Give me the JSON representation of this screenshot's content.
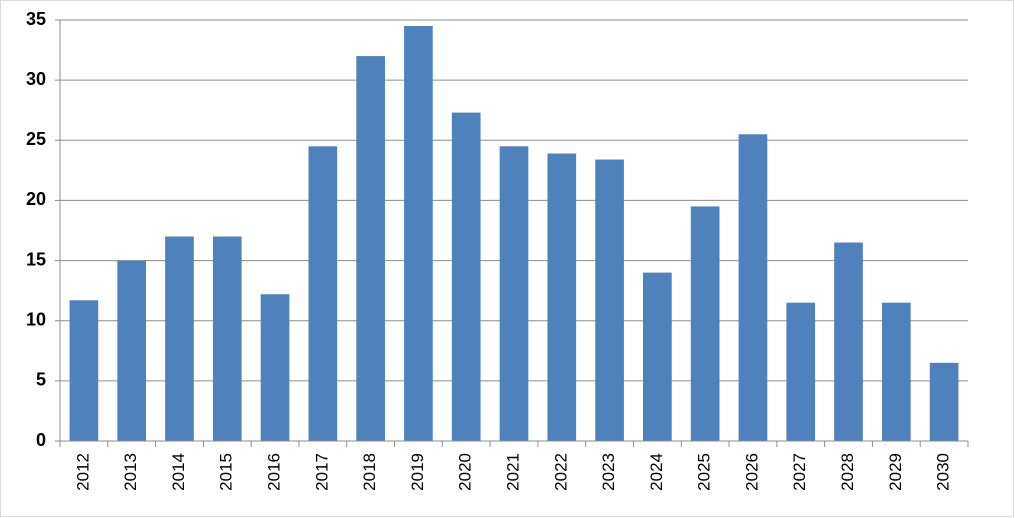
{
  "chart_data": {
    "type": "bar",
    "categories": [
      "2012",
      "2013",
      "2014",
      "2015",
      "2016",
      "2017",
      "2018",
      "2019",
      "2020",
      "2021",
      "2022",
      "2023",
      "2024",
      "2025",
      "2026",
      "2027",
      "2028",
      "2029",
      "2030"
    ],
    "values": [
      11.7,
      15,
      17,
      17,
      12.2,
      24.5,
      32,
      34.5,
      27.3,
      24.5,
      23.9,
      23.4,
      14,
      19.5,
      25.5,
      11.5,
      16.5,
      11.5,
      6.5
    ],
    "color": "#4f81bd",
    "ylim": [
      0,
      35
    ],
    "yticks": [
      0,
      5,
      10,
      15,
      20,
      25,
      30,
      35
    ],
    "grid": true
  }
}
